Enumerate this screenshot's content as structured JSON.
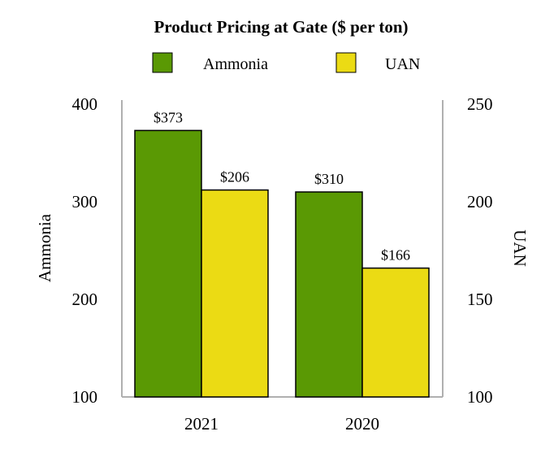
{
  "chart_data": {
    "type": "bar",
    "title": "Product Pricing at Gate ($ per ton)",
    "categories": [
      "2021",
      "2020"
    ],
    "series": [
      {
        "name": "Ammonia",
        "axis": "left",
        "values": [
          373,
          310
        ],
        "labels": [
          "$373",
          "$310"
        ],
        "color": "#5a9904"
      },
      {
        "name": "UAN",
        "axis": "right",
        "values": [
          206,
          166
        ],
        "labels": [
          "$206",
          "$166"
        ],
        "color": "#ebdb14"
      }
    ],
    "y_left": {
      "label": "Ammonia",
      "ylim": [
        100,
        400
      ],
      "ticks": [
        "100",
        "200",
        "300",
        "400"
      ]
    },
    "y_right": {
      "label": "UAN",
      "ylim": [
        100,
        250
      ],
      "ticks": [
        "100",
        "150",
        "200",
        "250"
      ]
    },
    "legend": "top-center",
    "grid": false
  }
}
